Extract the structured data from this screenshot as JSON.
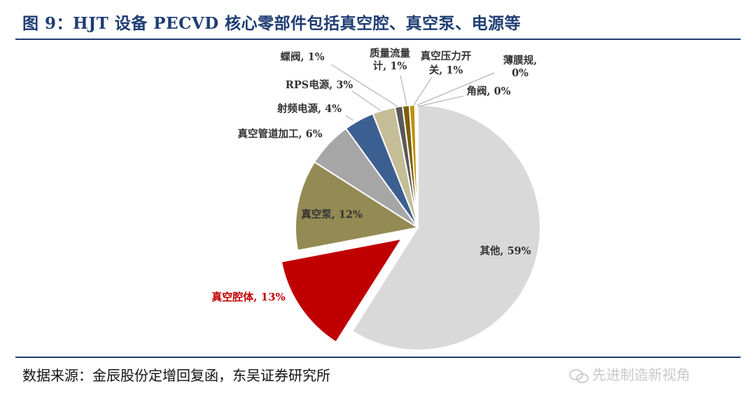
{
  "header": {
    "title": "图 9：HJT 设备 PECVD 核心零部件包括真空腔、真空泵、电源等"
  },
  "footer": {
    "source": "数据来源：金辰股份定增回复函，东吴证券研究所",
    "watermark": "先进制造新视角"
  },
  "chart_data": {
    "type": "pie",
    "title": "",
    "slices": [
      {
        "label": "其他",
        "value": 59,
        "text": "其他, 59%",
        "color": "#d9d9d9"
      },
      {
        "label": "真空腔体",
        "value": 13,
        "text": "真空腔体, 13%",
        "color": "#c00000",
        "exploded": true
      },
      {
        "label": "真空泵",
        "value": 12,
        "text": "真空泵, 12%",
        "color": "#948a54"
      },
      {
        "label": "真空管道加工",
        "value": 6,
        "text": "真空管道加工, 6%",
        "color": "#a6a6a6"
      },
      {
        "label": "射频电源",
        "value": 4,
        "text": "射频电源, 4%",
        "color": "#3c5f91"
      },
      {
        "label": "RPS电源",
        "value": 3,
        "text": "RPS电源, 3%",
        "color": "#c4bd97"
      },
      {
        "label": "蝶阀",
        "value": 1,
        "text": "蝶阀, 1%",
        "color": "#595959"
      },
      {
        "label": "质量流量计",
        "value": 1,
        "text": [
          "质量流量",
          "计, 1%"
        ],
        "color": "#7f6000"
      },
      {
        "label": "真空压力开关",
        "value": 1,
        "text": [
          "真空压力开",
          "关, 1%"
        ],
        "color": "#c09000"
      },
      {
        "label": "薄膜规",
        "value": 0,
        "text": [
          "薄膜规,",
          "0%"
        ],
        "color": "#808080"
      },
      {
        "label": "角阀",
        "value": 0,
        "text": "角阀, 0%",
        "color": "#bfbfbf"
      }
    ]
  }
}
